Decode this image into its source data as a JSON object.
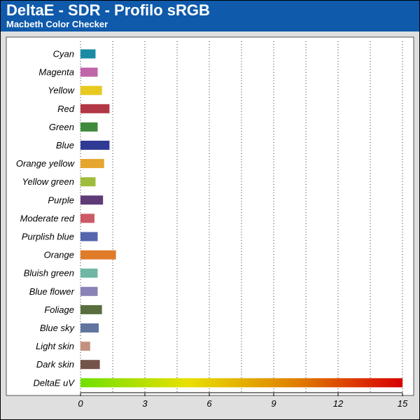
{
  "header": {
    "title": "DeltaE - SDR - Profilo sRGB",
    "subtitle": "Macbeth Color Checker"
  },
  "colors": {
    "header_bg": "#0f5aab",
    "plot_bg": "#dfdfdf",
    "panel_bg": "#ffffff"
  },
  "chart_data": {
    "type": "bar",
    "orientation": "horizontal",
    "title": "DeltaE - SDR - Profilo sRGB",
    "subtitle": "Macbeth Color Checker",
    "xlim": [
      0,
      15
    ],
    "xticks": [
      "0",
      "3",
      "6",
      "9",
      "12",
      "15"
    ],
    "grid": true,
    "categories": [
      "Cyan",
      "Magenta",
      "Yellow",
      "Red",
      "Green",
      "Blue",
      "Orange yellow",
      "Yellow green",
      "Purple",
      "Moderate red",
      "Purplish blue",
      "Orange",
      "Bluish green",
      "Blue flower",
      "Foliage",
      "Blue sky",
      "Light skin",
      "Dark skin",
      "DeltaE uV"
    ],
    "values": [
      0.7,
      0.8,
      1.0,
      1.35,
      0.8,
      1.35,
      1.1,
      0.7,
      1.05,
      0.65,
      0.8,
      1.65,
      0.8,
      0.8,
      1.0,
      0.85,
      0.45,
      0.9,
      15
    ],
    "bar_colors": [
      "#1a8ba3",
      "#c065a8",
      "#e8c920",
      "#b23845",
      "#3f8a3c",
      "#303a94",
      "#e6a52c",
      "#9fbc3c",
      "#5e3a78",
      "#cc5a66",
      "#5464ad",
      "#e07b2a",
      "#6fb6a4",
      "#8a83b8",
      "#586e3e",
      "#6076a0",
      "#c49181",
      "#73534a",
      "gradient"
    ],
    "gradient_stops": [
      "#70e000",
      "#e8e000",
      "#e08000",
      "#d80000"
    ]
  }
}
